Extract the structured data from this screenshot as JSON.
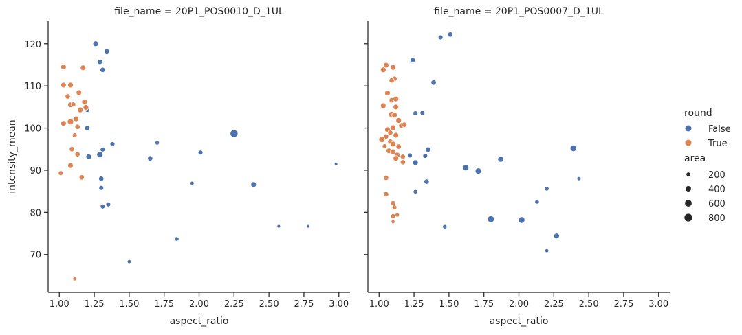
{
  "chart_data": {
    "type": "scatter",
    "xlabel": "aspect_ratio",
    "ylabel": "intensity_mean",
    "xlim": [
      0.92,
      3.08
    ],
    "ylim": [
      61,
      125.5
    ],
    "xticks": [
      "1.00",
      "1.25",
      "1.50",
      "1.75",
      "2.00",
      "2.25",
      "2.50",
      "2.75",
      "3.00"
    ],
    "yticks": [
      "70",
      "80",
      "90",
      "100",
      "110",
      "120"
    ],
    "colors": {
      "False": "#4c72b0",
      "True": "#dd8452"
    },
    "legend": {
      "position": "right",
      "hue_title": "round",
      "hue_entries": [
        "False",
        "True"
      ],
      "size_title": "area",
      "size_entries": [
        "200",
        "400",
        "600",
        "800"
      ]
    },
    "panels": [
      {
        "title": "file_name = 20P1_POS0010_D_1UL",
        "points": [
          {
            "x": 1.26,
            "y": 120.0,
            "round": "False",
            "area": 400
          },
          {
            "x": 1.34,
            "y": 118.2,
            "round": "False",
            "area": 350
          },
          {
            "x": 1.29,
            "y": 115.7,
            "round": "False",
            "area": 350
          },
          {
            "x": 1.31,
            "y": 113.8,
            "round": "False",
            "area": 350
          },
          {
            "x": 1.2,
            "y": 104.3,
            "round": "False",
            "area": 300
          },
          {
            "x": 1.2,
            "y": 100.0,
            "round": "False",
            "area": 350
          },
          {
            "x": 1.21,
            "y": 93.2,
            "round": "False",
            "area": 400
          },
          {
            "x": 1.29,
            "y": 93.7,
            "round": "False",
            "area": 500
          },
          {
            "x": 1.31,
            "y": 94.9,
            "round": "False",
            "area": 300
          },
          {
            "x": 1.38,
            "y": 96.2,
            "round": "False",
            "area": 300
          },
          {
            "x": 1.3,
            "y": 88.0,
            "round": "False",
            "area": 350
          },
          {
            "x": 1.3,
            "y": 85.8,
            "round": "False",
            "area": 300
          },
          {
            "x": 1.35,
            "y": 81.9,
            "round": "False",
            "area": 300
          },
          {
            "x": 1.31,
            "y": 81.4,
            "round": "False",
            "area": 300
          },
          {
            "x": 1.5,
            "y": 68.3,
            "round": "False",
            "area": 200
          },
          {
            "x": 1.65,
            "y": 92.8,
            "round": "False",
            "area": 350
          },
          {
            "x": 1.7,
            "y": 96.5,
            "round": "False",
            "area": 250
          },
          {
            "x": 1.84,
            "y": 73.7,
            "round": "False",
            "area": 250
          },
          {
            "x": 1.95,
            "y": 86.9,
            "round": "False",
            "area": 200
          },
          {
            "x": 2.01,
            "y": 94.2,
            "round": "False",
            "area": 300
          },
          {
            "x": 2.25,
            "y": 98.7,
            "round": "False",
            "area": 800
          },
          {
            "x": 2.39,
            "y": 86.6,
            "round": "False",
            "area": 400
          },
          {
            "x": 2.57,
            "y": 76.7,
            "round": "False",
            "area": 150
          },
          {
            "x": 2.78,
            "y": 76.7,
            "round": "False",
            "area": 150
          },
          {
            "x": 2.98,
            "y": 91.5,
            "round": "False",
            "area": 150
          },
          {
            "x": 1.03,
            "y": 114.5,
            "round": "True",
            "area": 400
          },
          {
            "x": 1.17,
            "y": 114.3,
            "round": "True",
            "area": 400
          },
          {
            "x": 1.03,
            "y": 110.2,
            "round": "True",
            "area": 400
          },
          {
            "x": 1.08,
            "y": 110.2,
            "round": "True",
            "area": 400
          },
          {
            "x": 1.14,
            "y": 108.4,
            "round": "True",
            "area": 400
          },
          {
            "x": 1.06,
            "y": 107.5,
            "round": "True",
            "area": 350
          },
          {
            "x": 1.18,
            "y": 106.2,
            "round": "True",
            "area": 400
          },
          {
            "x": 1.08,
            "y": 105.5,
            "round": "True",
            "area": 400
          },
          {
            "x": 1.1,
            "y": 105.6,
            "round": "True",
            "area": 300
          },
          {
            "x": 1.19,
            "y": 104.9,
            "round": "True",
            "area": 400
          },
          {
            "x": 1.15,
            "y": 104.3,
            "round": "True",
            "area": 400
          },
          {
            "x": 1.12,
            "y": 102.2,
            "round": "True",
            "area": 400
          },
          {
            "x": 1.08,
            "y": 101.5,
            "round": "True",
            "area": 500
          },
          {
            "x": 1.03,
            "y": 101.1,
            "round": "True",
            "area": 400
          },
          {
            "x": 1.13,
            "y": 100.3,
            "round": "True",
            "area": 350
          },
          {
            "x": 1.11,
            "y": 98.3,
            "round": "True",
            "area": 300
          },
          {
            "x": 1.09,
            "y": 95.0,
            "round": "True",
            "area": 350
          },
          {
            "x": 1.13,
            "y": 93.8,
            "round": "True",
            "area": 350
          },
          {
            "x": 1.08,
            "y": 91.1,
            "round": "True",
            "area": 400
          },
          {
            "x": 1.01,
            "y": 89.3,
            "round": "True",
            "area": 300
          },
          {
            "x": 1.16,
            "y": 88.3,
            "round": "True",
            "area": 350
          },
          {
            "x": 1.11,
            "y": 64.2,
            "round": "True",
            "area": 200
          }
        ]
      },
      {
        "title": "file_name = 20P1_POS0007_D_1UL",
        "points": [
          {
            "x": 1.51,
            "y": 122.2,
            "round": "False",
            "area": 350
          },
          {
            "x": 1.44,
            "y": 121.5,
            "round": "False",
            "area": 300
          },
          {
            "x": 1.24,
            "y": 116.1,
            "round": "False",
            "area": 350
          },
          {
            "x": 1.39,
            "y": 110.8,
            "round": "False",
            "area": 350
          },
          {
            "x": 1.26,
            "y": 103.5,
            "round": "False",
            "area": 300
          },
          {
            "x": 1.31,
            "y": 103.6,
            "round": "False",
            "area": 300
          },
          {
            "x": 1.35,
            "y": 94.9,
            "round": "False",
            "area": 350
          },
          {
            "x": 1.33,
            "y": 93.4,
            "round": "False",
            "area": 300
          },
          {
            "x": 1.22,
            "y": 93.5,
            "round": "False",
            "area": 300
          },
          {
            "x": 1.26,
            "y": 91.8,
            "round": "False",
            "area": 400
          },
          {
            "x": 1.34,
            "y": 87.3,
            "round": "False",
            "area": 350
          },
          {
            "x": 1.26,
            "y": 84.9,
            "round": "False",
            "area": 250
          },
          {
            "x": 1.47,
            "y": 76.6,
            "round": "False",
            "area": 250
          },
          {
            "x": 1.62,
            "y": 90.6,
            "round": "False",
            "area": 500
          },
          {
            "x": 1.71,
            "y": 89.8,
            "round": "False",
            "area": 500
          },
          {
            "x": 1.8,
            "y": 78.4,
            "round": "False",
            "area": 600
          },
          {
            "x": 1.87,
            "y": 92.6,
            "round": "False",
            "area": 450
          },
          {
            "x": 2.02,
            "y": 78.2,
            "round": "False",
            "area": 550
          },
          {
            "x": 2.13,
            "y": 82.5,
            "round": "False",
            "area": 250
          },
          {
            "x": 2.2,
            "y": 85.6,
            "round": "False",
            "area": 250
          },
          {
            "x": 2.2,
            "y": 70.9,
            "round": "False",
            "area": 200
          },
          {
            "x": 2.27,
            "y": 74.4,
            "round": "False",
            "area": 400
          },
          {
            "x": 2.39,
            "y": 95.2,
            "round": "False",
            "area": 550
          },
          {
            "x": 2.43,
            "y": 88.0,
            "round": "False",
            "area": 200
          },
          {
            "x": 1.05,
            "y": 114.9,
            "round": "True",
            "area": 400
          },
          {
            "x": 1.1,
            "y": 114.4,
            "round": "True",
            "area": 400
          },
          {
            "x": 1.03,
            "y": 113.8,
            "round": "True",
            "area": 400
          },
          {
            "x": 1.11,
            "y": 111.7,
            "round": "True",
            "area": 350
          },
          {
            "x": 1.09,
            "y": 111.3,
            "round": "True",
            "area": 350
          },
          {
            "x": 1.06,
            "y": 108.3,
            "round": "True",
            "area": 400
          },
          {
            "x": 1.09,
            "y": 106.6,
            "round": "True",
            "area": 350
          },
          {
            "x": 1.12,
            "y": 106.9,
            "round": "True",
            "area": 400
          },
          {
            "x": 1.03,
            "y": 105.3,
            "round": "True",
            "area": 400
          },
          {
            "x": 1.12,
            "y": 105.0,
            "round": "True",
            "area": 400
          },
          {
            "x": 1.09,
            "y": 103.2,
            "round": "True",
            "area": 500
          },
          {
            "x": 1.11,
            "y": 103.1,
            "round": "True",
            "area": 400
          },
          {
            "x": 1.14,
            "y": 101.8,
            "round": "True",
            "area": 400
          },
          {
            "x": 1.16,
            "y": 100.6,
            "round": "True",
            "area": 400
          },
          {
            "x": 1.18,
            "y": 100.8,
            "round": "True",
            "area": 350
          },
          {
            "x": 1.1,
            "y": 100.1,
            "round": "True",
            "area": 400
          },
          {
            "x": 1.06,
            "y": 99.6,
            "round": "True",
            "area": 400
          },
          {
            "x": 1.08,
            "y": 98.9,
            "round": "True",
            "area": 350
          },
          {
            "x": 1.12,
            "y": 98.3,
            "round": "True",
            "area": 400
          },
          {
            "x": 1.05,
            "y": 98.0,
            "round": "True",
            "area": 350
          },
          {
            "x": 1.02,
            "y": 97.3,
            "round": "True",
            "area": 500
          },
          {
            "x": 1.08,
            "y": 96.8,
            "round": "True",
            "area": 350
          },
          {
            "x": 1.1,
            "y": 96.2,
            "round": "True",
            "area": 400
          },
          {
            "x": 1.04,
            "y": 95.7,
            "round": "True",
            "area": 300
          },
          {
            "x": 1.14,
            "y": 95.6,
            "round": "True",
            "area": 350
          },
          {
            "x": 1.07,
            "y": 94.6,
            "round": "True",
            "area": 400
          },
          {
            "x": 1.1,
            "y": 94.4,
            "round": "True",
            "area": 400
          },
          {
            "x": 1.13,
            "y": 93.6,
            "round": "True",
            "area": 400
          },
          {
            "x": 1.12,
            "y": 92.8,
            "round": "True",
            "area": 400
          },
          {
            "x": 1.17,
            "y": 93.2,
            "round": "True",
            "area": 350
          },
          {
            "x": 1.17,
            "y": 91.9,
            "round": "True",
            "area": 350
          },
          {
            "x": 1.05,
            "y": 88.2,
            "round": "True",
            "area": 350
          },
          {
            "x": 1.05,
            "y": 84.3,
            "round": "True",
            "area": 350
          },
          {
            "x": 1.1,
            "y": 82.2,
            "round": "True",
            "area": 300
          },
          {
            "x": 1.11,
            "y": 81.2,
            "round": "True",
            "area": 300
          },
          {
            "x": 1.13,
            "y": 79.4,
            "round": "True",
            "area": 250
          },
          {
            "x": 1.1,
            "y": 79.1,
            "round": "True",
            "area": 300
          },
          {
            "x": 1.1,
            "y": 77.8,
            "round": "True",
            "area": 200
          }
        ]
      }
    ]
  }
}
